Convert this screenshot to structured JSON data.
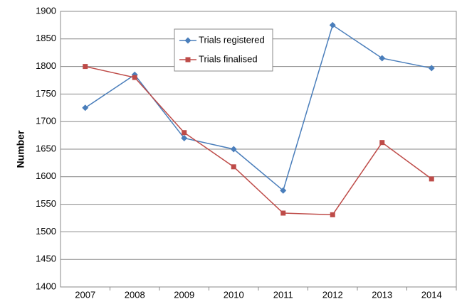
{
  "chart_data": {
    "type": "line",
    "y_label": "Number",
    "categories": [
      "2007",
      "2008",
      "2009",
      "2010",
      "2011",
      "2012",
      "2013",
      "2014"
    ],
    "series": [
      {
        "name": "Trials registered",
        "color": "#4a7ebb",
        "marker": "diamond",
        "values": [
          1725,
          1785,
          1670,
          1650,
          1575,
          1875,
          1815,
          1797
        ]
      },
      {
        "name": "Trials finalised",
        "color": "#be4b48",
        "marker": "square",
        "values": [
          1800,
          1780,
          1680,
          1618,
          1534,
          1531,
          1662,
          1596
        ]
      }
    ],
    "ylim": [
      1400,
      1900
    ],
    "yticks": [
      1400,
      1450,
      1500,
      1550,
      1600,
      1650,
      1700,
      1750,
      1800,
      1850,
      1900
    ],
    "grid": true
  }
}
